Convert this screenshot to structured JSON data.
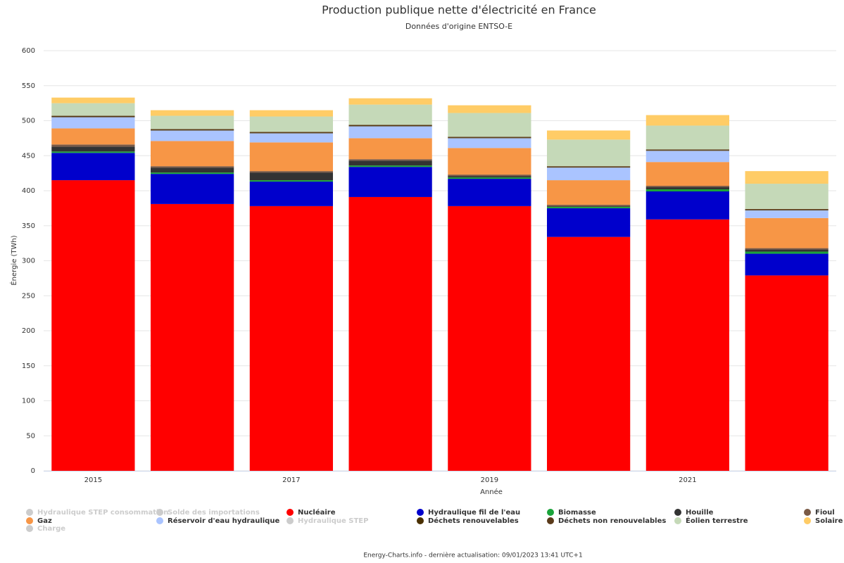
{
  "chart_data": {
    "type": "stacked_bar",
    "title": "Production publique nette d'électricité en France",
    "subtitle": "Données d'origine ENTSO-E",
    "y_label": "Énergie (TWh)",
    "x_label": "Année",
    "footer": "Energy-Charts.info - dernière actualisation: 09/01/2023 13:41 UTC+1",
    "categories": [
      "2015",
      null,
      "2017",
      null,
      "2019",
      null,
      "2021",
      null
    ],
    "ylim": [
      0,
      600
    ],
    "yticks": [
      0,
      50,
      100,
      150,
      200,
      250,
      300,
      350,
      400,
      450,
      500,
      550,
      600
    ],
    "grid": true,
    "series": [
      {
        "name": "Hydraulique STEP consommation",
        "color": "#cccccc",
        "visible": false,
        "values": [
          null,
          null,
          null,
          null,
          null,
          null,
          null,
          null
        ]
      },
      {
        "name": "Solde des importations",
        "color": "#cccccc",
        "visible": false,
        "values": [
          null,
          null,
          null,
          null,
          null,
          null,
          null,
          null
        ]
      },
      {
        "name": "Nucléaire",
        "color": "#ff0000",
        "visible": true,
        "values": [
          415,
          381,
          378,
          391,
          378,
          334,
          359,
          279
        ]
      },
      {
        "name": "Hydraulique fil de l'eau",
        "color": "#0000cc",
        "visible": true,
        "values": [
          39,
          43,
          35,
          43,
          39,
          41,
          40,
          31
        ]
      },
      {
        "name": "Biomasse",
        "color": "#1aa33a",
        "visible": true,
        "values": [
          2,
          2,
          2,
          2,
          2,
          2,
          3,
          3
        ]
      },
      {
        "name": "Houille",
        "color": "#333333",
        "visible": true,
        "values": [
          7,
          7,
          11,
          7,
          2,
          1,
          3,
          3
        ]
      },
      {
        "name": "Fioul",
        "color": "#7a5a46",
        "visible": true,
        "values": [
          3,
          2,
          2,
          2,
          2,
          2,
          2,
          2
        ]
      },
      {
        "name": "Gaz",
        "color": "#f79646",
        "visible": true,
        "values": [
          23,
          36,
          41,
          30,
          38,
          35,
          34,
          43
        ]
      },
      {
        "name": "Réservoir d'eau hydraulique",
        "color": "#aac4ff",
        "visible": true,
        "values": [
          16,
          15,
          13,
          17,
          14,
          18,
          16,
          11
        ]
      },
      {
        "name": "Hydraulique STEP",
        "color": "#cccccc",
        "visible": false,
        "values": [
          null,
          null,
          null,
          null,
          null,
          null,
          null,
          null
        ]
      },
      {
        "name": "Déchets renouvelables",
        "color": "#4a3000",
        "visible": true,
        "values": [
          1,
          1,
          1,
          1,
          1,
          1,
          1,
          1
        ]
      },
      {
        "name": "Déchets non renouvelables",
        "color": "#5a3a1a",
        "visible": true,
        "values": [
          1,
          1,
          1,
          1,
          1,
          1,
          1,
          1
        ]
      },
      {
        "name": "Éolien terrestre",
        "color": "#c5d9b8",
        "visible": true,
        "values": [
          18,
          19,
          22,
          29,
          34,
          38,
          34,
          36
        ]
      },
      {
        "name": "Solaire",
        "color": "#ffcc66",
        "visible": true,
        "values": [
          8,
          8,
          9,
          9,
          11,
          13,
          15,
          18
        ]
      },
      {
        "name": "Charge",
        "color": "#cccccc",
        "visible": false,
        "values": [
          null,
          null,
          null,
          null,
          null,
          null,
          null,
          null
        ]
      }
    ]
  }
}
